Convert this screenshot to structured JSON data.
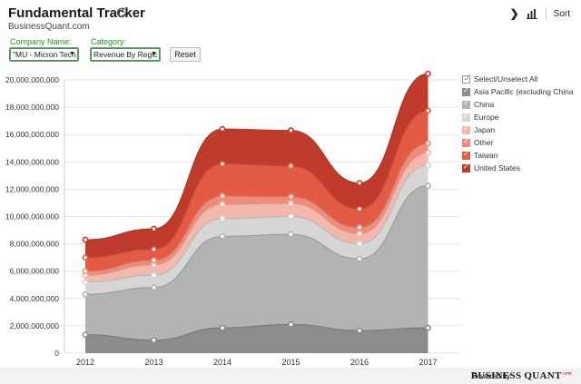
{
  "header": {
    "title": "Fundamental Tracker",
    "subtitle": "BusinessQuant.com",
    "sort_label": "Sort"
  },
  "controls": {
    "company_label": "Company Name:",
    "company_value": "\"MU - Micron Tech",
    "category_label": "Category:",
    "category_value": "Revenue By Regic",
    "reset_label": "Reset"
  },
  "legend": {
    "select_all_label": "Select/Unselect All",
    "items": [
      {
        "label": "Asia Pacific (excluding China a...",
        "color": "#8c8c8c"
      },
      {
        "label": "China",
        "color": "#b3b3b3"
      },
      {
        "label": "Europe",
        "color": "#d6d6d6"
      },
      {
        "label": "Japan",
        "color": "#f4b7ab"
      },
      {
        "label": "Other",
        "color": "#ef8b78"
      },
      {
        "label": "Taiwan",
        "color": "#e35a45"
      },
      {
        "label": "United States",
        "color": "#bf3b2c"
      }
    ]
  },
  "footer": {
    "powered_label": "Powered by",
    "brand_label": "BUSINESS QUANT",
    "brand_suffix": ".com"
  },
  "chart_data": {
    "type": "area",
    "stacked": true,
    "title": "",
    "xlabel": "",
    "ylabel": "",
    "x": [
      "2012",
      "2013",
      "2014",
      "2015",
      "2016",
      "2017"
    ],
    "ylim": [
      0,
      20000000000
    ],
    "yticks": [
      0,
      2000000000,
      4000000000,
      6000000000,
      8000000000,
      10000000000,
      12000000000,
      14000000000,
      16000000000,
      18000000000,
      20000000000
    ],
    "ytick_labels": [
      "0",
      "2,000,000,000",
      "4,000,000,000",
      "6,000,000,000",
      "8,000,000,000",
      "10,000,000,000",
      "12,000,000,000",
      "14,000,000,000",
      "16,000,000,000",
      "18,000,000,000",
      "20,000,000,000"
    ],
    "grid": true,
    "legend_position": "right",
    "series": [
      {
        "name": "Asia Pacific (excluding China a...",
        "color": "#8c8c8c",
        "values": [
          1350000000,
          950000000,
          1850000000,
          2100000000,
          1650000000,
          1850000000
        ]
      },
      {
        "name": "China",
        "color": "#b3b3b3",
        "values": [
          2950000000,
          3850000000,
          6700000000,
          6600000000,
          5250000000,
          10400000000
        ]
      },
      {
        "name": "Europe",
        "color": "#d6d6d6",
        "values": [
          900000000,
          900000000,
          1300000000,
          1300000000,
          1100000000,
          1500000000
        ]
      },
      {
        "name": "Japan",
        "color": "#f4b7ab",
        "values": [
          500000000,
          750000000,
          1050000000,
          950000000,
          750000000,
          900000000
        ]
      },
      {
        "name": "Other",
        "color": "#ef8b78",
        "values": [
          300000000,
          350000000,
          600000000,
          500000000,
          450000000,
          700000000
        ]
      },
      {
        "name": "Taiwan",
        "color": "#e35a45",
        "values": [
          1000000000,
          800000000,
          2350000000,
          2250000000,
          1350000000,
          2400000000
        ]
      },
      {
        "name": "United States",
        "color": "#bf3b2c",
        "values": [
          1300000000,
          1500000000,
          2550000000,
          2600000000,
          1900000000,
          2700000000
        ]
      }
    ]
  }
}
